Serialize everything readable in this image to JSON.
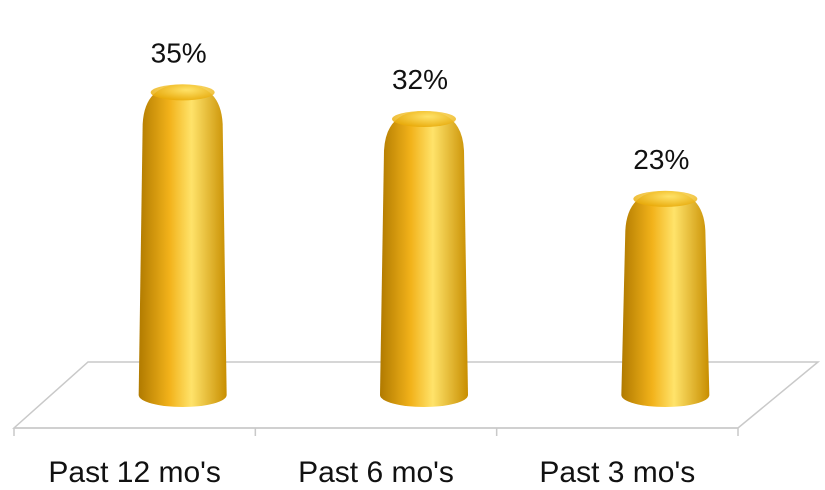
{
  "chart_data": {
    "type": "bar",
    "categories": [
      "Past 12 mo's",
      "Past 6 mo's",
      "Past 3 mo's"
    ],
    "values": [
      35,
      32,
      23
    ],
    "value_labels": [
      "35%",
      "32%",
      "23%"
    ],
    "ylim": [
      0,
      40
    ],
    "grid": false,
    "legend": "none",
    "style": "3d-cone",
    "colors": {
      "bar": "#f2b21a",
      "bar_light": "#ffe36a",
      "bar_dark": "#b07a00",
      "floor": "#ffffff",
      "floor_edge": "#c9c9c9"
    }
  }
}
